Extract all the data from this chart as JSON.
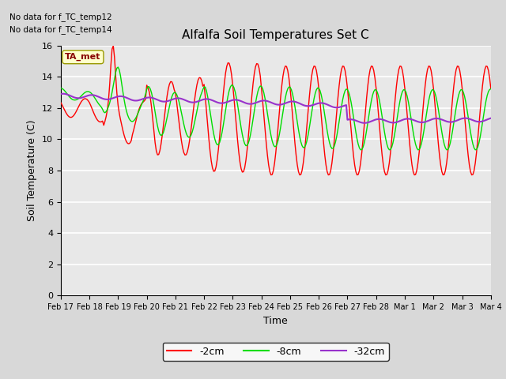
{
  "title": "Alfalfa Soil Temperatures Set C",
  "xlabel": "Time",
  "ylabel": "Soil Temperature (C)",
  "ylim": [
    0,
    16
  ],
  "yticks": [
    0,
    2,
    4,
    6,
    8,
    10,
    12,
    14,
    16
  ],
  "colors": {
    "2cm": "#ff0000",
    "8cm": "#00dd00",
    "32cm": "#9933cc"
  },
  "legend_labels": [
    "-2cm",
    "-8cm",
    "-32cm"
  ],
  "no_data_text1": "No data for f_TC_temp12",
  "no_data_text2": "No data for f_TC_temp14",
  "ta_met_label": "TA_met",
  "background_color": "#d8d8d8",
  "plot_bg_color": "#e8e8e8",
  "grid_color": "#ffffff",
  "figsize": [
    6.4,
    4.8
  ],
  "dpi": 100,
  "xtick_labels": [
    "Feb 17",
    "Feb 18",
    "Feb 19",
    "Feb 20",
    "Feb 21",
    "Feb 22",
    "Feb 23",
    "Feb 24",
    "Feb 25",
    "Feb 26",
    "Feb 27",
    "Feb 28",
    "Mar 1",
    "Mar 2",
    "Mar 3",
    "Mar 4"
  ]
}
